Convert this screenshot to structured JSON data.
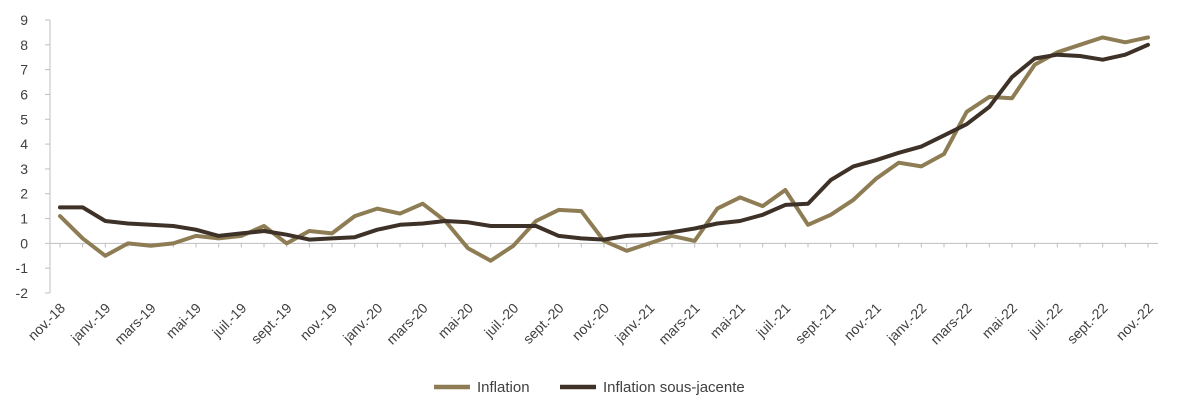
{
  "chart_data": {
    "type": "line",
    "x": [
      "nov.-18",
      "déc.-18",
      "janv.-19",
      "févr.-19",
      "mars-19",
      "avr.-19",
      "mai-19",
      "juin-19",
      "juil.-19",
      "août-19",
      "sept.-19",
      "oct.-19",
      "nov.-19",
      "déc.-19",
      "janv.-20",
      "févr.-20",
      "mars-20",
      "avr.-20",
      "mai-20",
      "juin-20",
      "juil.-20",
      "août-20",
      "sept.-20",
      "oct.-20",
      "nov.-20",
      "déc.-20",
      "janv.-21",
      "févr.-21",
      "mars-21",
      "avr.-21",
      "mai-21",
      "juin-21",
      "juil.-21",
      "août-21",
      "sept.-21",
      "oct.-21",
      "nov.-21",
      "déc.-21",
      "janv.-22",
      "févr.-22",
      "mars-22",
      "avr.-22",
      "mai-22",
      "juin-22",
      "juil.-22",
      "août-22",
      "sept.-22",
      "oct.-22",
      "nov.-22"
    ],
    "tick_labels": [
      "nov.-18",
      "janv.-19",
      "mars-19",
      "mai-19",
      "juil.-19",
      "sept.-19",
      "nov.-19",
      "janv.-20",
      "mars-20",
      "mai-20",
      "juil.-20",
      "sept.-20",
      "nov.-20",
      "janv.-21",
      "mars-21",
      "mai-21",
      "juil.-21",
      "sept.-21",
      "nov.-21",
      "janv.-22",
      "mars-22",
      "mai-22",
      "juil.-22",
      "sept.-22",
      "nov.-22"
    ],
    "series": [
      {
        "name": "Inflation",
        "color": "#8e7d54",
        "values": [
          1.1,
          0.2,
          -0.5,
          0.0,
          -0.1,
          0.0,
          0.3,
          0.2,
          0.3,
          0.7,
          0.0,
          0.5,
          0.4,
          1.1,
          1.4,
          1.2,
          1.6,
          0.9,
          -0.2,
          -0.7,
          -0.1,
          0.9,
          1.35,
          1.3,
          0.1,
          -0.3,
          0.0,
          0.3,
          0.1,
          1.4,
          1.85,
          1.5,
          2.15,
          0.75,
          1.15,
          1.75,
          2.6,
          3.25,
          3.1,
          3.6,
          5.3,
          5.9,
          5.85,
          7.2,
          7.7,
          8.0,
          8.3,
          8.1,
          8.3
        ]
      },
      {
        "name": "Inflation sous-jacente",
        "color": "#3e3127",
        "values": [
          1.45,
          1.45,
          0.9,
          0.8,
          0.75,
          0.7,
          0.55,
          0.3,
          0.4,
          0.5,
          0.35,
          0.15,
          0.2,
          0.25,
          0.55,
          0.75,
          0.8,
          0.9,
          0.85,
          0.7,
          0.7,
          0.7,
          0.3,
          0.2,
          0.15,
          0.3,
          0.35,
          0.45,
          0.6,
          0.8,
          0.9,
          1.15,
          1.55,
          1.6,
          2.55,
          3.1,
          3.35,
          3.65,
          3.9,
          4.35,
          4.8,
          5.5,
          6.7,
          7.45,
          7.6,
          7.55,
          7.4,
          7.6,
          8.0
        ]
      }
    ],
    "xlabel": "",
    "ylabel": "",
    "ylim": [
      -2,
      9
    ],
    "yticks": [
      -2,
      -1,
      0,
      1,
      2,
      3,
      4,
      5,
      6,
      7,
      8,
      9
    ],
    "grid": false,
    "legend_position": "bottom-center"
  }
}
